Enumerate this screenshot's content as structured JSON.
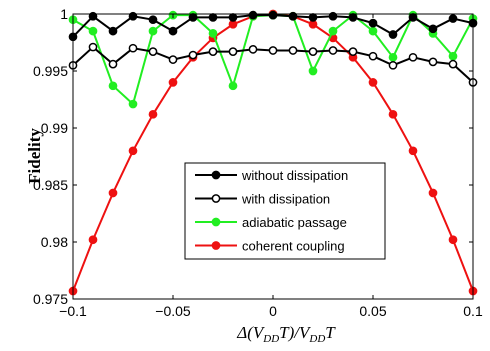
{
  "chart_data": {
    "type": "line",
    "xlabel": "Δ(V_DD T)/V_DD T",
    "ylabel": "Fidelity",
    "xlim": [
      -0.1,
      0.1
    ],
    "ylim": [
      0.975,
      1.0
    ],
    "xticks": [
      -0.1,
      -0.05,
      0,
      0.05,
      0.1
    ],
    "xtick_labels": [
      "−0.1",
      "−0.05",
      "0",
      "0.05",
      "0.1"
    ],
    "yticks": [
      0.975,
      0.98,
      0.985,
      0.99,
      0.995,
      1.0
    ],
    "ytick_labels": [
      "0.975",
      "0.98",
      "0.985",
      "0.99",
      "0.995",
      "1"
    ],
    "legend_position": "lower-center",
    "x": [
      -0.1,
      -0.09,
      -0.08,
      -0.07,
      -0.06,
      -0.05,
      -0.04,
      -0.03,
      -0.02,
      -0.01,
      0,
      0.01,
      0.02,
      0.03,
      0.04,
      0.05,
      0.06,
      0.07,
      0.08,
      0.09,
      0.1
    ],
    "series": [
      {
        "name": "without dissipation",
        "color": "#000000",
        "marker_fill": "#000000",
        "values": [
          0.998,
          0.9998,
          0.9985,
          0.9998,
          0.9995,
          0.9985,
          0.9997,
          0.9997,
          0.9997,
          0.9999,
          0.9999,
          0.9998,
          0.9997,
          0.9998,
          0.9997,
          0.9992,
          0.9982,
          0.9997,
          0.9987,
          0.9996,
          0.9992
        ]
      },
      {
        "name": "with dissipation",
        "color": "#000000",
        "marker_fill": "#ffffff",
        "values": [
          0.9955,
          0.9971,
          0.9956,
          0.997,
          0.9967,
          0.996,
          0.9964,
          0.9967,
          0.9967,
          0.9969,
          0.9968,
          0.9968,
          0.9967,
          0.9968,
          0.9967,
          0.9963,
          0.9955,
          0.9962,
          0.9958,
          0.9956,
          0.994
        ]
      },
      {
        "name": "adiabatic passage",
        "color": "#22ee22",
        "marker_fill": "#22ee22",
        "values": [
          0.9995,
          0.9985,
          0.9937,
          0.9921,
          0.9985,
          0.9999,
          0.9999,
          0.9983,
          0.9937,
          0.9998,
          0.9999,
          0.9998,
          0.995,
          0.9985,
          0.9999,
          0.9985,
          0.9962,
          0.9999,
          0.9983,
          0.9963,
          0.9996
        ]
      },
      {
        "name": "coherent coupling",
        "color": "#ee1111",
        "marker_fill": "#ee1111",
        "values": [
          0.9757,
          0.9802,
          0.9843,
          0.988,
          0.9912,
          0.994,
          0.9962,
          0.9979,
          0.9991,
          0.9998,
          1.0,
          0.9998,
          0.9991,
          0.9979,
          0.9962,
          0.994,
          0.9912,
          0.988,
          0.9843,
          0.9802,
          0.9757
        ]
      }
    ]
  }
}
